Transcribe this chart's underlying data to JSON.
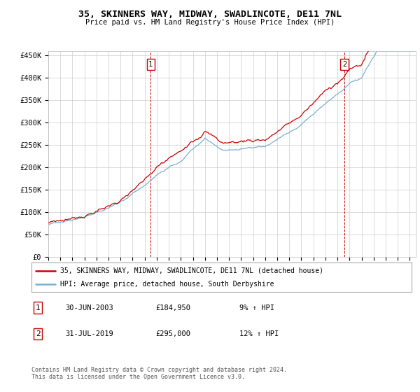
{
  "title": "35, SKINNERS WAY, MIDWAY, SWADLINCOTE, DE11 7NL",
  "subtitle": "Price paid vs. HM Land Registry's House Price Index (HPI)",
  "ylim": [
    0,
    460000
  ],
  "yticks": [
    0,
    50000,
    100000,
    150000,
    200000,
    250000,
    300000,
    350000,
    400000,
    450000
  ],
  "ytick_labels": [
    "£0",
    "£50K",
    "£100K",
    "£150K",
    "£200K",
    "£250K",
    "£300K",
    "£350K",
    "£400K",
    "£450K"
  ],
  "sale1_date_num": 2003.5,
  "sale1_price": 184950,
  "sale2_date_num": 2019.583,
  "sale2_price": 295000,
  "sale1_date_str": "30-JUN-2003",
  "sale1_price_str": "£184,950",
  "sale1_hpi_str": "9% ↑ HPI",
  "sale2_date_str": "31-JUL-2019",
  "sale2_price_str": "£295,000",
  "sale2_hpi_str": "12% ↑ HPI",
  "property_color": "#cc0000",
  "hpi_color": "#7bafd4",
  "background_color": "#ffffff",
  "grid_color": "#cccccc",
  "legend_label1": "35, SKINNERS WAY, MIDWAY, SWADLINCOTE, DE11 7NL (detached house)",
  "legend_label2": "HPI: Average price, detached house, South Derbyshire",
  "footnote": "Contains HM Land Registry data © Crown copyright and database right 2024.\nThis data is licensed under the Open Government Licence v3.0.",
  "xmin": 1995.0,
  "xmax": 2025.5
}
